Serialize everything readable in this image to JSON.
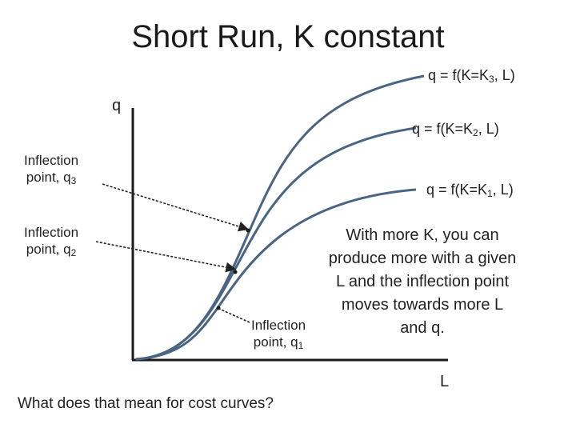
{
  "title": "Short Run, K constant",
  "axes": {
    "y_label": "q",
    "x_label": "L"
  },
  "curves": [
    {
      "label_pre": "q = f(K=K",
      "label_sub": "3",
      "label_post": ", L)"
    },
    {
      "label_pre": "q = f(K=K",
      "label_sub": "2",
      "label_post": ", L)"
    },
    {
      "label_pre": "q = f(K=K",
      "label_sub": "1",
      "label_post": ", L)"
    }
  ],
  "inflection_labels": [
    {
      "line1": "Inflection",
      "line2_pre": "point, q",
      "line2_sub": "3"
    },
    {
      "line1": "Inflection",
      "line2_pre": "point, q",
      "line2_sub": "2"
    },
    {
      "line1": "Inflection",
      "line2_pre": "point, q",
      "line2_sub": "1"
    }
  ],
  "note": "With more K, you can produce more with a given L and the inflection point moves towards more L and q.",
  "question": "What does that mean for cost curves?",
  "colors": {
    "curve": "#4a6584",
    "axis": "#1a1a1a",
    "arrow": "#222222"
  }
}
